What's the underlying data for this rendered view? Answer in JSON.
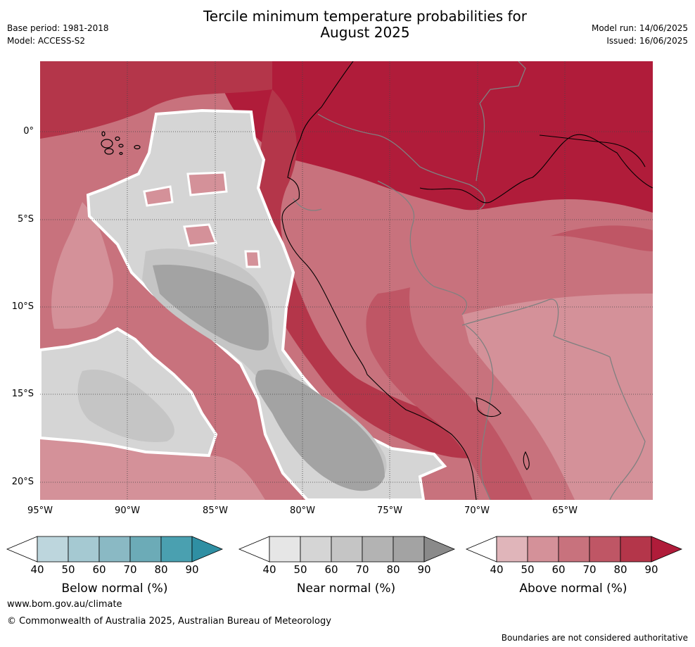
{
  "title_line1": "Tercile minimum temperature probabilities for",
  "title_line2": "August 2025",
  "base_period": "Base period: 1981-2018",
  "model": "Model: ACCESS-S2",
  "model_run": "Model run: 14/06/2025",
  "issued": "Issued: 16/06/2025",
  "lat_labels": [
    "0°",
    "5°S",
    "10°S",
    "15°S",
    "20°S"
  ],
  "lon_labels": [
    "95°W",
    "90°W",
    "85°W",
    "80°W",
    "75°W",
    "70°W",
    "65°W"
  ],
  "colorbars": [
    {
      "label": "Below normal (%)",
      "ticks": [
        "40",
        "50",
        "60",
        "70",
        "80",
        "90"
      ],
      "colors": [
        "#bdd6dd",
        "#a5c9d2",
        "#8ab9c4",
        "#6cabb7",
        "#4aa0b0"
      ],
      "extend_color": "#2f8fa3"
    },
    {
      "label": "Near normal (%)",
      "ticks": [
        "40",
        "50",
        "60",
        "70",
        "80",
        "90"
      ],
      "colors": [
        "#e6e6e6",
        "#d5d5d5",
        "#c5c5c5",
        "#b3b3b3",
        "#a3a3a3"
      ],
      "extend_color": "#8a8a8a"
    },
    {
      "label": "Above normal (%)",
      "ticks": [
        "40",
        "50",
        "60",
        "70",
        "80",
        "90"
      ],
      "colors": [
        "#e0b5ba",
        "#d49199",
        "#c8727d",
        "#bf5665",
        "#b4364a"
      ],
      "extend_color": "#b01c3a"
    }
  ],
  "website": "www.bom.gov.au/climate",
  "copyright": "© Commonwealth of Australia 2025, Australian Bureau of Meteorology",
  "disclaimer": "Boundaries are not considered authoritative"
}
